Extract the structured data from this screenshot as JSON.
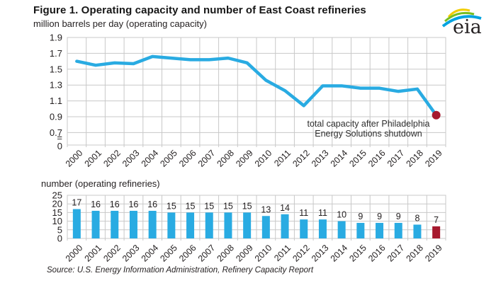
{
  "title": "Figure 1. Operating capacity and number of East Coast refineries",
  "logo": {
    "text": "eia"
  },
  "source": "Source: U.S. Energy Information Administration, Refinery Capacity Report",
  "colors": {
    "series_blue": "#29ABE2",
    "highlight_red": "#A6192E",
    "grid_gray": "#C8C8C8",
    "text_dark": "#231F20",
    "logo_yellow": "#F2CD00",
    "logo_green": "#78BE20",
    "logo_blue": "#00A3E0"
  },
  "chart_data": [
    {
      "type": "line",
      "title": "million barrels per day (operating capacity)",
      "x": [
        2000,
        2001,
        2002,
        2003,
        2004,
        2005,
        2006,
        2007,
        2008,
        2009,
        2010,
        2011,
        2012,
        2013,
        2014,
        2015,
        2016,
        2017,
        2018,
        2019
      ],
      "values": [
        1.6,
        1.55,
        1.58,
        1.57,
        1.66,
        1.64,
        1.62,
        1.62,
        1.64,
        1.58,
        1.36,
        1.23,
        1.04,
        1.29,
        1.29,
        1.26,
        1.26,
        1.22,
        1.25,
        0.92
      ],
      "ylim": [
        0.7,
        1.9
      ],
      "axis_break": true,
      "y_ticks": [
        "1.9",
        "1.7",
        "1.5",
        "1.3",
        "1.1",
        "0.9",
        "0.7"
      ],
      "axis_break_label": "=",
      "axis_zero_label": "0",
      "grid": true,
      "highlight_last_point": true,
      "annotation_lines": [
        "total capacity after Philadelphia",
        "Energy Solutions shutdown"
      ]
    },
    {
      "type": "bar",
      "title": "number (operating refineries)",
      "categories": [
        2000,
        2001,
        2002,
        2003,
        2004,
        2005,
        2006,
        2007,
        2008,
        2009,
        2010,
        2011,
        2012,
        2013,
        2014,
        2015,
        2016,
        2017,
        2018,
        2019
      ],
      "values": [
        17,
        16,
        16,
        16,
        16,
        15,
        15,
        15,
        15,
        15,
        13,
        14,
        11,
        11,
        10,
        9,
        9,
        9,
        8,
        7
      ],
      "ylim": [
        0,
        25
      ],
      "y_ticks": [
        "25",
        "20",
        "15",
        "10",
        "5",
        "0"
      ],
      "grid": true,
      "data_labels": true,
      "highlight_last_bar": true
    }
  ]
}
